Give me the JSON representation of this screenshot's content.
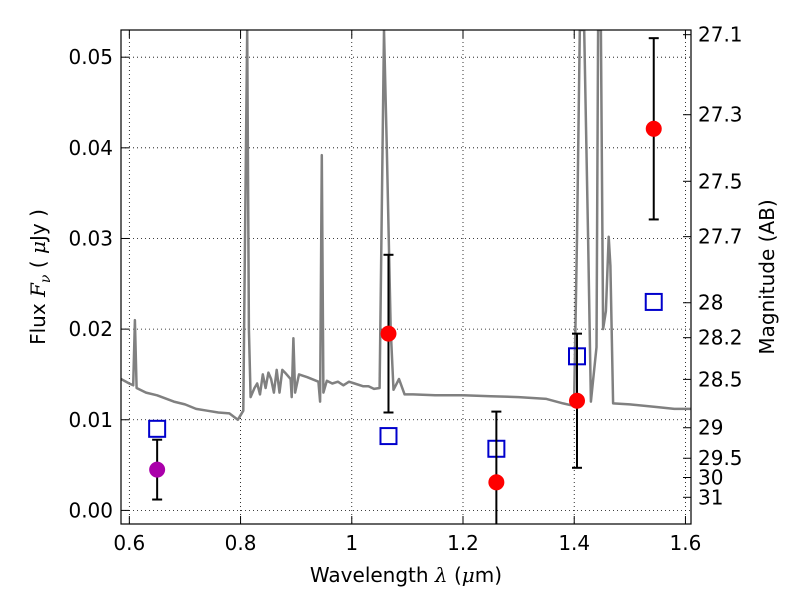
{
  "chart_data": {
    "type": "scatter",
    "xlabel": {
      "pre": "Wavelength  ",
      "symbol": "λ",
      "post": " (",
      "mu": "μ",
      "unit": "m)"
    },
    "ylabel": {
      "pre": "Flux  ",
      "symbol": "F",
      "sub": "ν",
      "paren_open": "  ( ",
      "mu": "μ",
      "unit": "Jy )"
    },
    "y2label": "Magnitude (AB)",
    "xlim": [
      0.585,
      1.61
    ],
    "ylim": [
      -0.0015,
      0.053
    ],
    "grid": true,
    "x_ticks": [
      0.6,
      0.8,
      1.0,
      1.2,
      1.4,
      1.6
    ],
    "x_tick_labels": [
      "0.6",
      "0.8",
      "1",
      "1.2",
      "1.4",
      "1.6"
    ],
    "y_ticks": [
      0.0,
      0.01,
      0.02,
      0.03,
      0.04,
      0.05
    ],
    "y_tick_labels": [
      "0.00",
      "0.01",
      "0.02",
      "0.03",
      "0.04",
      "0.05"
    ],
    "mag_ticks": [
      "27.1",
      "27.3",
      "27.5",
      "27.7",
      "28",
      "28.2",
      "28.5",
      "29",
      "29.5",
      "30",
      "31"
    ],
    "colors": {
      "spectrum": "#808080",
      "observed": "#ff0000",
      "observed_upper_limit": "#aa00aa",
      "model": "#0000cc",
      "errorbar": "#000000"
    },
    "spectrum": [
      [
        0.585,
        0.0145
      ],
      [
        0.6,
        0.014
      ],
      [
        0.607,
        0.0138
      ],
      [
        0.61,
        0.021
      ],
      [
        0.613,
        0.0135
      ],
      [
        0.63,
        0.013
      ],
      [
        0.65,
        0.0127
      ],
      [
        0.68,
        0.012
      ],
      [
        0.7,
        0.0117
      ],
      [
        0.72,
        0.0112
      ],
      [
        0.74,
        0.011
      ],
      [
        0.76,
        0.0108
      ],
      [
        0.78,
        0.0107
      ],
      [
        0.795,
        0.01
      ],
      [
        0.805,
        0.011
      ],
      [
        0.808,
        0.03
      ],
      [
        0.812,
        0.053
      ],
      [
        0.815,
        0.02
      ],
      [
        0.818,
        0.0125
      ],
      [
        0.825,
        0.0135
      ],
      [
        0.83,
        0.014
      ],
      [
        0.835,
        0.0128
      ],
      [
        0.84,
        0.015
      ],
      [
        0.845,
        0.0135
      ],
      [
        0.85,
        0.0152
      ],
      [
        0.855,
        0.0145
      ],
      [
        0.86,
        0.013
      ],
      [
        0.865,
        0.0155
      ],
      [
        0.87,
        0.013
      ],
      [
        0.875,
        0.0155
      ],
      [
        0.88,
        0.0152
      ],
      [
        0.89,
        0.0145
      ],
      [
        0.892,
        0.0125
      ],
      [
        0.895,
        0.019
      ],
      [
        0.898,
        0.013
      ],
      [
        0.905,
        0.015
      ],
      [
        0.92,
        0.0147
      ],
      [
        0.94,
        0.0142
      ],
      [
        0.943,
        0.012
      ],
      [
        0.946,
        0.0392
      ],
      [
        0.949,
        0.013
      ],
      [
        0.955,
        0.0143
      ],
      [
        0.965,
        0.014
      ],
      [
        0.975,
        0.0142
      ],
      [
        0.985,
        0.0138
      ],
      [
        0.995,
        0.0142
      ],
      [
        1.005,
        0.014
      ],
      [
        1.02,
        0.0137
      ],
      [
        1.03,
        0.0137
      ],
      [
        1.04,
        0.0134
      ],
      [
        1.05,
        0.0135
      ],
      [
        1.058,
        0.053
      ],
      [
        1.063,
        0.04
      ],
      [
        1.07,
        0.02
      ],
      [
        1.075,
        0.0133
      ],
      [
        1.085,
        0.0145
      ],
      [
        1.095,
        0.0128
      ],
      [
        1.11,
        0.0128
      ],
      [
        1.15,
        0.0127
      ],
      [
        1.2,
        0.0127
      ],
      [
        1.25,
        0.0126
      ],
      [
        1.3,
        0.0125
      ],
      [
        1.35,
        0.0123
      ],
      [
        1.38,
        0.0118
      ],
      [
        1.395,
        0.0116
      ],
      [
        1.4,
        0.0125
      ],
      [
        1.405,
        0.03
      ],
      [
        1.41,
        0.053
      ],
      [
        1.418,
        0.053
      ],
      [
        1.425,
        0.03
      ],
      [
        1.43,
        0.012
      ],
      [
        1.44,
        0.018
      ],
      [
        1.443,
        0.053
      ],
      [
        1.448,
        0.053
      ],
      [
        1.452,
        0.02
      ],
      [
        1.457,
        0.022
      ],
      [
        1.462,
        0.0302
      ],
      [
        1.465,
        0.027
      ],
      [
        1.47,
        0.0118
      ],
      [
        1.5,
        0.0117
      ],
      [
        1.55,
        0.0114
      ],
      [
        1.58,
        0.0112
      ],
      [
        1.61,
        0.0112
      ]
    ],
    "observed": [
      {
        "x": 1.066,
        "y": 0.0195,
        "yerr": 0.0087
      },
      {
        "x": 1.26,
        "y": 0.0031,
        "yerr": 0.0078
      },
      {
        "x": 1.405,
        "y": 0.0121,
        "yerr": 0.0074
      },
      {
        "x": 1.543,
        "y": 0.0421,
        "yerr": 0.01
      }
    ],
    "observed_upper_limit": [
      {
        "x": 0.65,
        "y": 0.0045,
        "yerr": 0.0033
      }
    ],
    "model": [
      {
        "x": 0.65,
        "y": 0.009
      },
      {
        "x": 1.066,
        "y": 0.0082
      },
      {
        "x": 1.26,
        "y": 0.0068
      },
      {
        "x": 1.405,
        "y": 0.017
      },
      {
        "x": 1.543,
        "y": 0.023
      }
    ]
  }
}
